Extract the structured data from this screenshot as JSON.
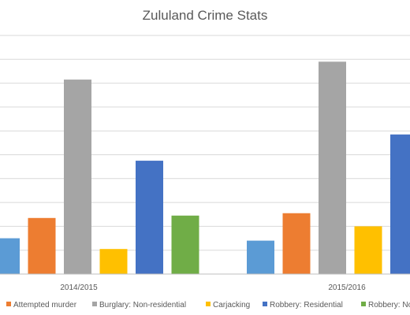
{
  "colors": {
    "gridline": "#d9d9d9",
    "axis": "#bfbfbf",
    "text": "#595959"
  },
  "chart_data": {
    "type": "bar",
    "title": "Zululand Crime Stats",
    "categories": [
      "2014/2015",
      "2015/2016"
    ],
    "ylim": [
      0,
      100
    ],
    "grid": true,
    "legend_position": "bottom",
    "series": [
      {
        "name": "",
        "color": "#5b9bd5",
        "values": [
          15,
          14
        ]
      },
      {
        "name": "Attempted murder",
        "color": "#ed7d31",
        "values": [
          23.5,
          25.5
        ]
      },
      {
        "name": "Burglary: Non-residential",
        "color": "#a5a5a5",
        "values": [
          81.5,
          89
        ]
      },
      {
        "name": "Carjacking",
        "color": "#ffc000",
        "values": [
          10.5,
          20
        ]
      },
      {
        "name": "Robbery: Residential",
        "color": "#4472c4",
        "values": [
          47.5,
          58.5
        ]
      },
      {
        "name": "Robbery: No",
        "color": "#70ad47",
        "values": [
          24.5,
          null
        ]
      }
    ]
  }
}
